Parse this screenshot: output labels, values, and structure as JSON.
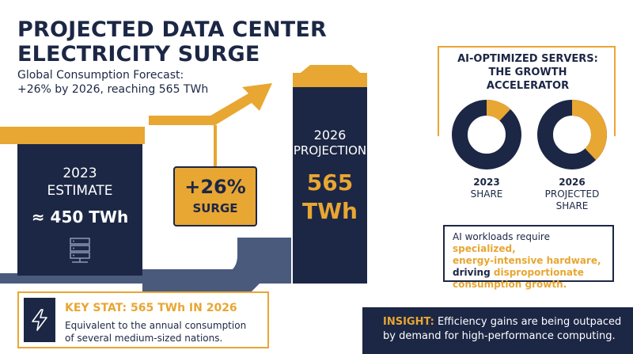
{
  "title_line1": "PROJECTED DATA CENTER",
  "title_line2": "ELECTRICITY SURGE",
  "subtitle_line1": "Global Consumption Forecast:",
  "subtitle_line2": "+26% by 2026, reaching 565 TWh",
  "estimate_2023": {
    "year": "2023",
    "label": "ESTIMATE",
    "value": "≈ 450 TWh",
    "icon": "server-icon"
  },
  "surge": {
    "percent": "+26%",
    "label": "SURGE"
  },
  "projection_2026": {
    "year": "2026",
    "label": "PROJECTION",
    "value_num": "565",
    "value_unit": "TWh"
  },
  "key_stat": {
    "heading": "KEY STAT: 565 TWh IN 2026",
    "line1": "Equivalent to the annual consumption",
    "line2": "of several medium-sized nations.",
    "icon": "lightning-icon"
  },
  "ai_card": {
    "title_line1": "AI-OPTIMIZED SERVERS:",
    "title_line2": "THE GROWTH ACCELERATOR",
    "donuts": [
      {
        "year": "2023",
        "line2": "SHARE",
        "line3": "",
        "fraction": 0.12
      },
      {
        "year": "2026",
        "line2": "PROJECTED",
        "line3": "SHARE",
        "fraction": 0.38
      }
    ],
    "note_line1_a": "AI workloads require ",
    "note_line1_b": "specialized,",
    "note_line2": "energy-intensive hardware,",
    "note_line3_a": "driving ",
    "note_line3_b": "disproportionate",
    "note_line4": "consumption growth."
  },
  "insight": {
    "label": "INSIGHT:",
    "text1": " Efficiency gains are being outpaced",
    "text2": "by demand for high-performance computing."
  },
  "colors": {
    "navy": "#1c2745",
    "gold": "#e8a632",
    "slate": "#4a5a7d",
    "white": "#ffffff"
  }
}
